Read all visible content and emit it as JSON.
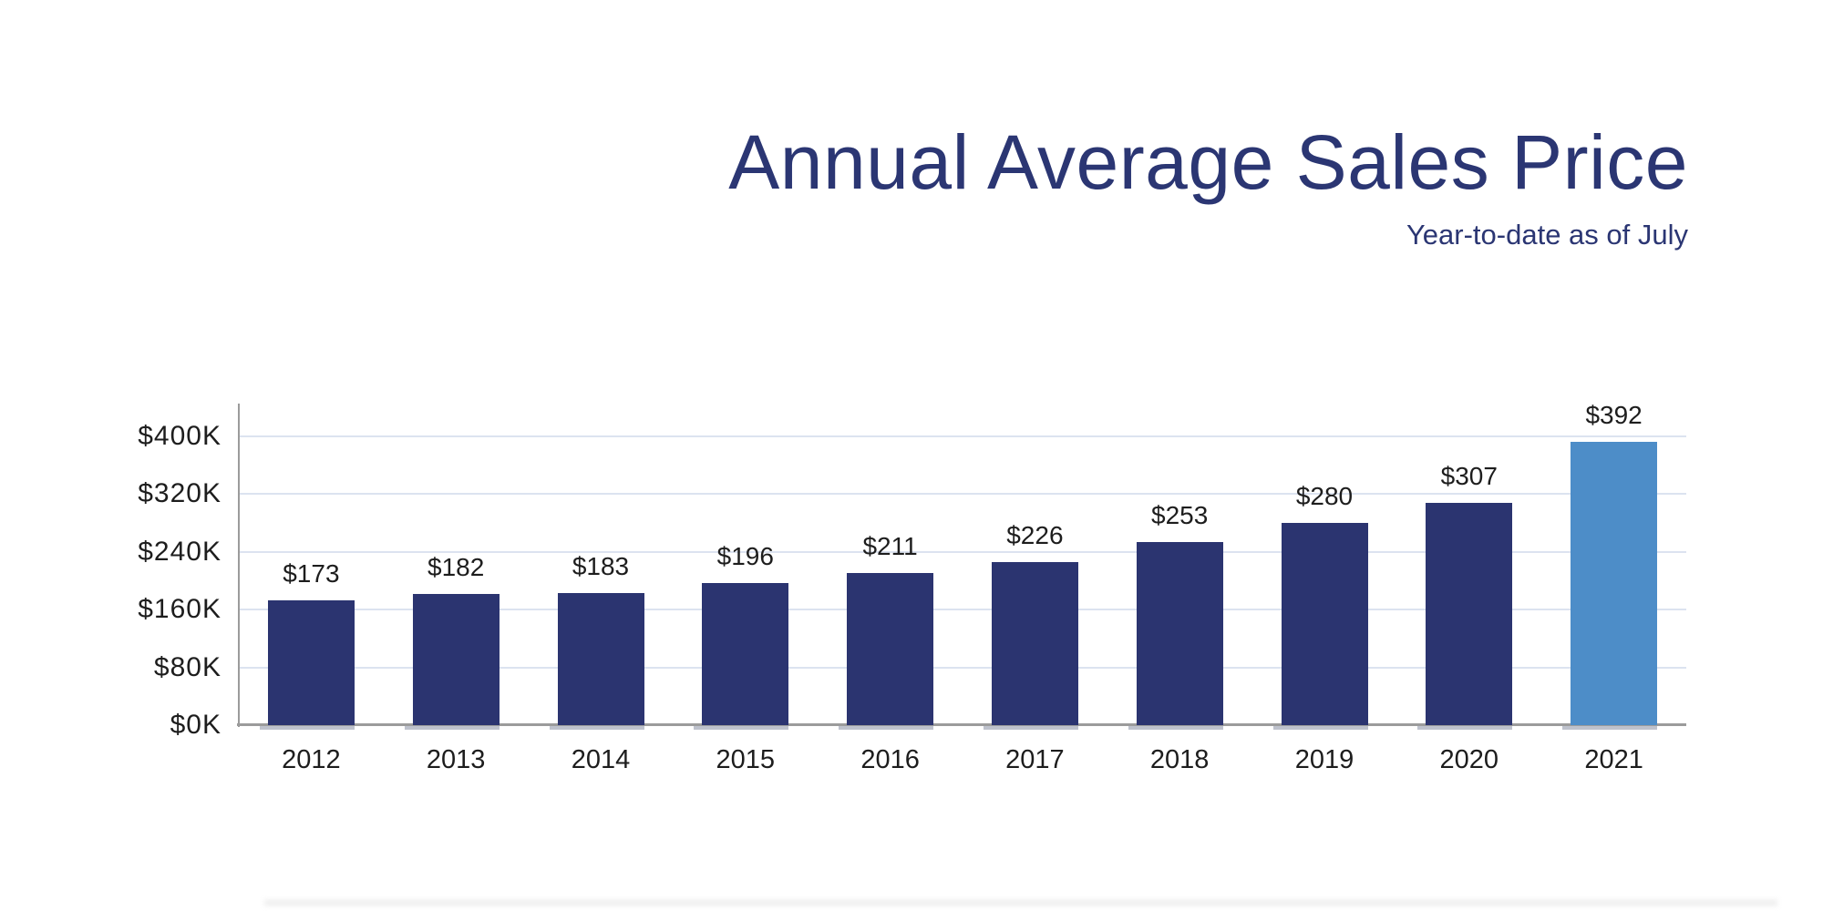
{
  "chart_data": {
    "type": "bar",
    "title": "Annual Average Sales Price",
    "subtitle": "Year-to-date as of July",
    "categories": [
      "2012",
      "2013",
      "2014",
      "2015",
      "2016",
      "2017",
      "2018",
      "2019",
      "2020",
      "2021"
    ],
    "values": [
      173,
      182,
      183,
      196,
      211,
      226,
      253,
      280,
      307,
      392
    ],
    "value_labels": [
      "$173",
      "$182",
      "$183",
      "$196",
      "$211",
      "$226",
      "$253",
      "$280",
      "$307",
      "$392"
    ],
    "y_ticks": [
      {
        "value": 0,
        "label": "$0K"
      },
      {
        "value": 80,
        "label": "$80K"
      },
      {
        "value": 160,
        "label": "$160K"
      },
      {
        "value": 240,
        "label": "$240K"
      },
      {
        "value": 320,
        "label": "$320K"
      },
      {
        "value": 400,
        "label": "$400K"
      }
    ],
    "ylim": [
      0,
      440
    ],
    "grid": true,
    "legend": "none",
    "highlighted_category": "2021",
    "colors": {
      "bar": "#2b3470",
      "highlighted_bar": "#4d8dc8",
      "title_text": "#2b3673",
      "gridline": "#dce3f0",
      "axis": "#9b9b9b",
      "tick_text": "#1d1d1d"
    }
  }
}
